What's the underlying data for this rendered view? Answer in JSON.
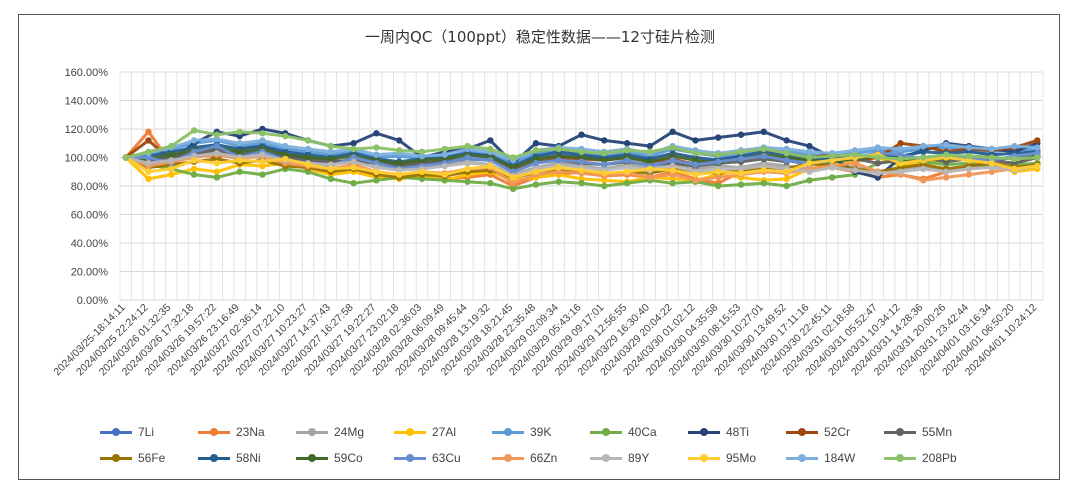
{
  "chart_data": {
    "type": "line",
    "title": "一周内QC（100ppt）稳定性数据——12寸硅片检测",
    "xlabel": "",
    "ylabel": "",
    "ylim": [
      0,
      160
    ],
    "yticks": [
      "0.00%",
      "20.00%",
      "40.00%",
      "60.00%",
      "80.00%",
      "100.00%",
      "120.00%",
      "140.00%",
      "160.00%"
    ],
    "grid": true,
    "legend": "bottom",
    "categories": [
      "2024/03/25-18:14:11",
      "2024/03/25 22:24:12",
      "2024/03/26 01:32:35",
      "2024/03/26 17:32:18",
      "2024/03/26 19:57:22",
      "2024/03/26 23:16:49",
      "2024/03/27 02:36:14",
      "2024/03/27 07:22:10",
      "2024/03/27 10:23:27",
      "2024/03/27 14:37:43",
      "2024/03/27 16:27:58",
      "2024/03/27 19:22:27",
      "2024/03/27 23:02:18",
      "2024/03/28 02:36:03",
      "2024/03/28 06:09:49",
      "2024/03/28 09:45:44",
      "2024/03/28 13:19:32",
      "2024/03/28 18:21:45",
      "2024/03/28 22:35:48",
      "2024/03/29 02:09:34",
      "2024/03/29 05:43:16",
      "2024/03/29 09:17:01",
      "2024/03/29 12:56:55",
      "2024/03/29 16:30:40",
      "2024/03/29 20:04:22",
      "2024/03/30 01:02:12",
      "2024/03/30 04:35:58",
      "2024/03/30 08:15:53",
      "2024/03/30 10:27:01",
      "2024/03/30 13:49:52",
      "2024/03/30 17:11:16",
      "2024/03/30 22:45:11",
      "2024/03/31 02:18:58",
      "2024/03/31 05:52:47",
      "2024/03/31 10:34:12",
      "2024/03/31 14:28:36",
      "2024/03/31 20:00:26",
      "2024/03/31 23:42:44",
      "2024/04/01 03:16:34",
      "2024/04/01 06:50:20",
      "2024/04/01 10:24:12"
    ],
    "series": [
      {
        "name": "7Li",
        "color": "#4472C4",
        "values": [
          100,
          98,
          101,
          104,
          106,
          103,
          105,
          100,
          98,
          96,
          99,
          97,
          95,
          97,
          96,
          99,
          98,
          92,
          100,
          102,
          101,
          99,
          100,
          98,
          97,
          96,
          99,
          101,
          100,
          98,
          95,
          97,
          99,
          101,
          100,
          98,
          100,
          99,
          98,
          100,
          101
        ]
      },
      {
        "name": "23Na",
        "color": "#ED7D31",
        "values": [
          100,
          118,
          96,
          102,
          105,
          100,
          103,
          98,
          95,
          92,
          94,
          90,
          88,
          86,
          85,
          86,
          88,
          80,
          86,
          88,
          90,
          87,
          88,
          86,
          90,
          85,
          82,
          90,
          95,
          92,
          96,
          93,
          90,
          86,
          88,
          85,
          90,
          92,
          95,
          96,
          100
        ]
      },
      {
        "name": "24Mg",
        "color": "#A5A5A5",
        "values": [
          100,
          96,
          99,
          102,
          104,
          101,
          100,
          99,
          96,
          95,
          97,
          94,
          92,
          93,
          95,
          97,
          95,
          88,
          93,
          96,
          94,
          92,
          95,
          93,
          96,
          92,
          94,
          93,
          96,
          94,
          92,
          95,
          93,
          90,
          92,
          94,
          91,
          93,
          95,
          92,
          96
        ]
      },
      {
        "name": "27Al",
        "color": "#FFC000",
        "values": [
          100,
          85,
          88,
          92,
          90,
          95,
          94,
          96,
          92,
          88,
          90,
          86,
          85,
          87,
          84,
          88,
          90,
          84,
          86,
          88,
          85,
          84,
          83,
          86,
          85,
          84,
          88,
          86,
          84,
          85,
          92,
          95,
          97,
          100,
          94,
          96,
          98,
          99,
          95,
          90,
          92
        ]
      },
      {
        "name": "39K",
        "color": "#5B9BD5",
        "values": [
          100,
          102,
          106,
          110,
          112,
          108,
          110,
          106,
          104,
          102,
          104,
          100,
          101,
          99,
          100,
          104,
          102,
          96,
          103,
          105,
          104,
          102,
          104,
          101,
          106,
          103,
          101,
          103,
          105,
          104,
          102,
          101,
          103,
          105,
          104,
          106,
          107,
          105,
          104,
          106,
          105
        ]
      },
      {
        "name": "40Ca",
        "color": "#70AD47",
        "values": [
          100,
          95,
          92,
          88,
          86,
          90,
          88,
          92,
          90,
          85,
          82,
          84,
          86,
          85,
          84,
          83,
          82,
          78,
          81,
          83,
          82,
          80,
          82,
          84,
          82,
          83,
          80,
          81,
          82,
          80,
          84,
          86,
          88,
          96,
          98,
          97,
          95,
          96,
          94,
          95,
          96
        ]
      },
      {
        "name": "48Ti",
        "color": "#264478",
        "values": [
          100,
          95,
          98,
          110,
          118,
          115,
          120,
          117,
          112,
          108,
          110,
          117,
          112,
          100,
          104,
          106,
          112,
          96,
          110,
          108,
          116,
          112,
          110,
          108,
          118,
          112,
          114,
          116,
          118,
          112,
          108,
          100,
          90,
          86,
          100,
          105,
          110,
          108,
          106,
          104,
          110
        ]
      },
      {
        "name": "52Cr",
        "color": "#9E480E",
        "values": [
          100,
          112,
          98,
          104,
          100,
          106,
          108,
          102,
          100,
          98,
          96,
          97,
          95,
          96,
          98,
          100,
          102,
          92,
          98,
          100,
          99,
          98,
          100,
          97,
          99,
          95,
          98,
          100,
          101,
          99,
          100,
          102,
          98,
          100,
          110,
          108,
          104,
          106,
          105,
          107,
          112
        ]
      },
      {
        "name": "55Mn",
        "color": "#636363",
        "values": [
          100,
          97,
          100,
          103,
          105,
          102,
          103,
          100,
          98,
          97,
          98,
          96,
          94,
          96,
          98,
          100,
          99,
          90,
          97,
          98,
          96,
          95,
          97,
          95,
          96,
          94,
          96,
          97,
          99,
          97,
          100,
          98,
          99,
          96,
          98,
          100,
          97,
          99,
          98,
          96,
          100
        ]
      },
      {
        "name": "56Fe",
        "color": "#997300",
        "values": [
          100,
          93,
          95,
          97,
          99,
          96,
          98,
          94,
          93,
          90,
          92,
          88,
          86,
          88,
          87,
          90,
          91,
          86,
          89,
          91,
          90,
          88,
          90,
          89,
          92,
          90,
          89,
          91,
          93,
          92,
          96,
          94,
          92,
          90,
          93,
          95,
          92,
          94,
          96,
          93,
          95
        ]
      },
      {
        "name": "58Ni",
        "color": "#255E91",
        "values": [
          100,
          101,
          104,
          107,
          109,
          106,
          108,
          104,
          102,
          100,
          103,
          99,
          97,
          99,
          100,
          103,
          101,
          94,
          101,
          104,
          102,
          100,
          102,
          99,
          103,
          100,
          98,
          101,
          104,
          102,
          100,
          99,
          100,
          102,
          101,
          104,
          103,
          104,
          102,
          103,
          104
        ]
      },
      {
        "name": "59Co",
        "color": "#43682B",
        "values": [
          100,
          99,
          102,
          105,
          107,
          104,
          106,
          102,
          100,
          99,
          101,
          98,
          96,
          98,
          99,
          102,
          100,
          93,
          99,
          101,
          100,
          98,
          100,
          97,
          101,
          98,
          96,
          99,
          102,
          100,
          98,
          97,
          99,
          101,
          98,
          100,
          99,
          101,
          100,
          99,
          101
        ]
      },
      {
        "name": "63Cu",
        "color": "#698ED0",
        "values": [
          100,
          100,
          96,
          104,
          108,
          100,
          104,
          98,
          96,
          94,
          100,
          96,
          92,
          94,
          96,
          100,
          98,
          90,
          96,
          98,
          97,
          95,
          98,
          94,
          98,
          95,
          97,
          99,
          101,
          98,
          96,
          98,
          100,
          103,
          102,
          99,
          101,
          100,
          98,
          101,
          103
        ]
      },
      {
        "name": "66Zn",
        "color": "#F1975A",
        "values": [
          100,
          94,
          97,
          100,
          102,
          99,
          101,
          96,
          94,
          92,
          95,
          90,
          88,
          90,
          89,
          92,
          93,
          82,
          88,
          90,
          89,
          87,
          89,
          86,
          88,
          84,
          86,
          88,
          90,
          89,
          92,
          94,
          96,
          90,
          88,
          84,
          86,
          88,
          90,
          92,
          94
        ]
      },
      {
        "name": "89Y",
        "color": "#B7B7B7",
        "values": [
          100,
          96,
          98,
          101,
          103,
          100,
          102,
          98,
          96,
          95,
          97,
          93,
          91,
          92,
          94,
          96,
          95,
          87,
          92,
          94,
          93,
          91,
          93,
          91,
          94,
          90,
          92,
          92,
          94,
          92,
          90,
          93,
          91,
          89,
          90,
          92,
          90,
          92,
          93,
          91,
          94
        ]
      },
      {
        "name": "95Mo",
        "color": "#FFCD33",
        "values": [
          100,
          90,
          92,
          98,
          96,
          98,
          97,
          99,
          95,
          92,
          93,
          90,
          88,
          90,
          88,
          92,
          94,
          86,
          90,
          93,
          91,
          89,
          90,
          92,
          91,
          88,
          90,
          89,
          91,
          90,
          96,
          98,
          100,
          102,
          96,
          98,
          100,
          98,
          96,
          92,
          94
        ]
      },
      {
        "name": "184W",
        "color": "#7CAFDD",
        "values": [
          100,
          103,
          107,
          112,
          113,
          110,
          112,
          108,
          106,
          104,
          106,
          102,
          103,
          101,
          102,
          106,
          104,
          98,
          105,
          107,
          106,
          104,
          106,
          103,
          108,
          105,
          103,
          105,
          107,
          106,
          104,
          103,
          105,
          107,
          106,
          108,
          109,
          107,
          106,
          108,
          107
        ]
      },
      {
        "name": "208Pb",
        "color": "#8CC168",
        "values": [
          100,
          104,
          108,
          119,
          116,
          118,
          117,
          115,
          112,
          108,
          106,
          107,
          105,
          104,
          106,
          108,
          106,
          100,
          105,
          106,
          104,
          103,
          105,
          104,
          107,
          103,
          102,
          104,
          106,
          103,
          100,
          101,
          102,
          100,
          99,
          100,
          102,
          101,
          100,
          99,
          100
        ]
      }
    ]
  }
}
